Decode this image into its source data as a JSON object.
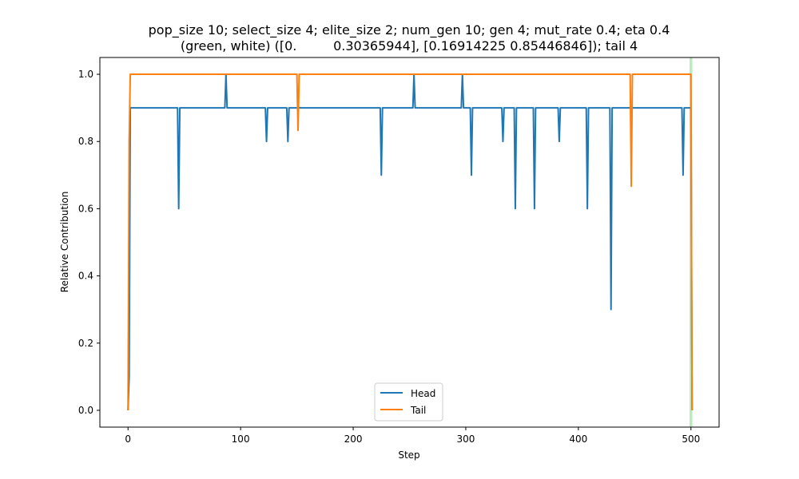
{
  "chart_data": {
    "type": "line",
    "title": "pop_size 10; select_size 4; elite_size 2; num_gen 10; gen 4; mut_rate 0.4; eta 0.4",
    "subtitle": "(green, white) ([0.         0.30365944], [0.16914225 0.85446846]); tail 4",
    "xlabel": "Step",
    "ylabel": "Relative Contribution",
    "xlim": [
      -25,
      525
    ],
    "ylim": [
      -0.05,
      1.05
    ],
    "xticks": [
      0,
      100,
      200,
      300,
      400,
      500
    ],
    "yticks": [
      0.0,
      0.2,
      0.4,
      0.6,
      0.8,
      1.0
    ],
    "xtick_labels": [
      "0",
      "100",
      "200",
      "300",
      "400",
      "500"
    ],
    "ytick_labels": [
      "0.0",
      "0.2",
      "0.4",
      "0.6",
      "0.8",
      "1.0"
    ],
    "grid": false,
    "legend": {
      "position": "lower-center"
    },
    "vline": {
      "x": 500,
      "color": "#b8ecb8"
    },
    "series": [
      {
        "name": "Head",
        "color": "#1f77b4",
        "base": 0.9,
        "start": [
          [
            0,
            0.0
          ],
          [
            1,
            0.1
          ],
          [
            2,
            0.9
          ]
        ],
        "end": [
          [
            500,
            0.9
          ],
          [
            501,
            0.0
          ]
        ],
        "x_end": 501,
        "dips": [
          [
            45,
            0.6
          ],
          [
            87,
            1.0
          ],
          [
            123,
            0.8
          ],
          [
            142,
            0.8
          ],
          [
            225,
            0.7
          ],
          [
            254,
            1.0
          ],
          [
            297,
            1.0
          ],
          [
            305,
            0.7
          ],
          [
            333,
            0.8
          ],
          [
            344,
            0.6
          ],
          [
            361,
            0.6
          ],
          [
            383,
            0.8
          ],
          [
            408,
            0.6
          ],
          [
            429,
            0.3
          ],
          [
            493,
            0.7
          ]
        ]
      },
      {
        "name": "Tail",
        "color": "#ff7f0e",
        "base": 1.0,
        "start": [
          [
            0,
            0.0
          ],
          [
            1,
            0.8
          ],
          [
            2,
            1.0
          ]
        ],
        "end": [
          [
            500,
            1.0
          ],
          [
            501,
            0.0
          ]
        ],
        "x_end": 501,
        "dips": [
          [
            151,
            0.833
          ],
          [
            447,
            0.667
          ]
        ]
      }
    ]
  }
}
